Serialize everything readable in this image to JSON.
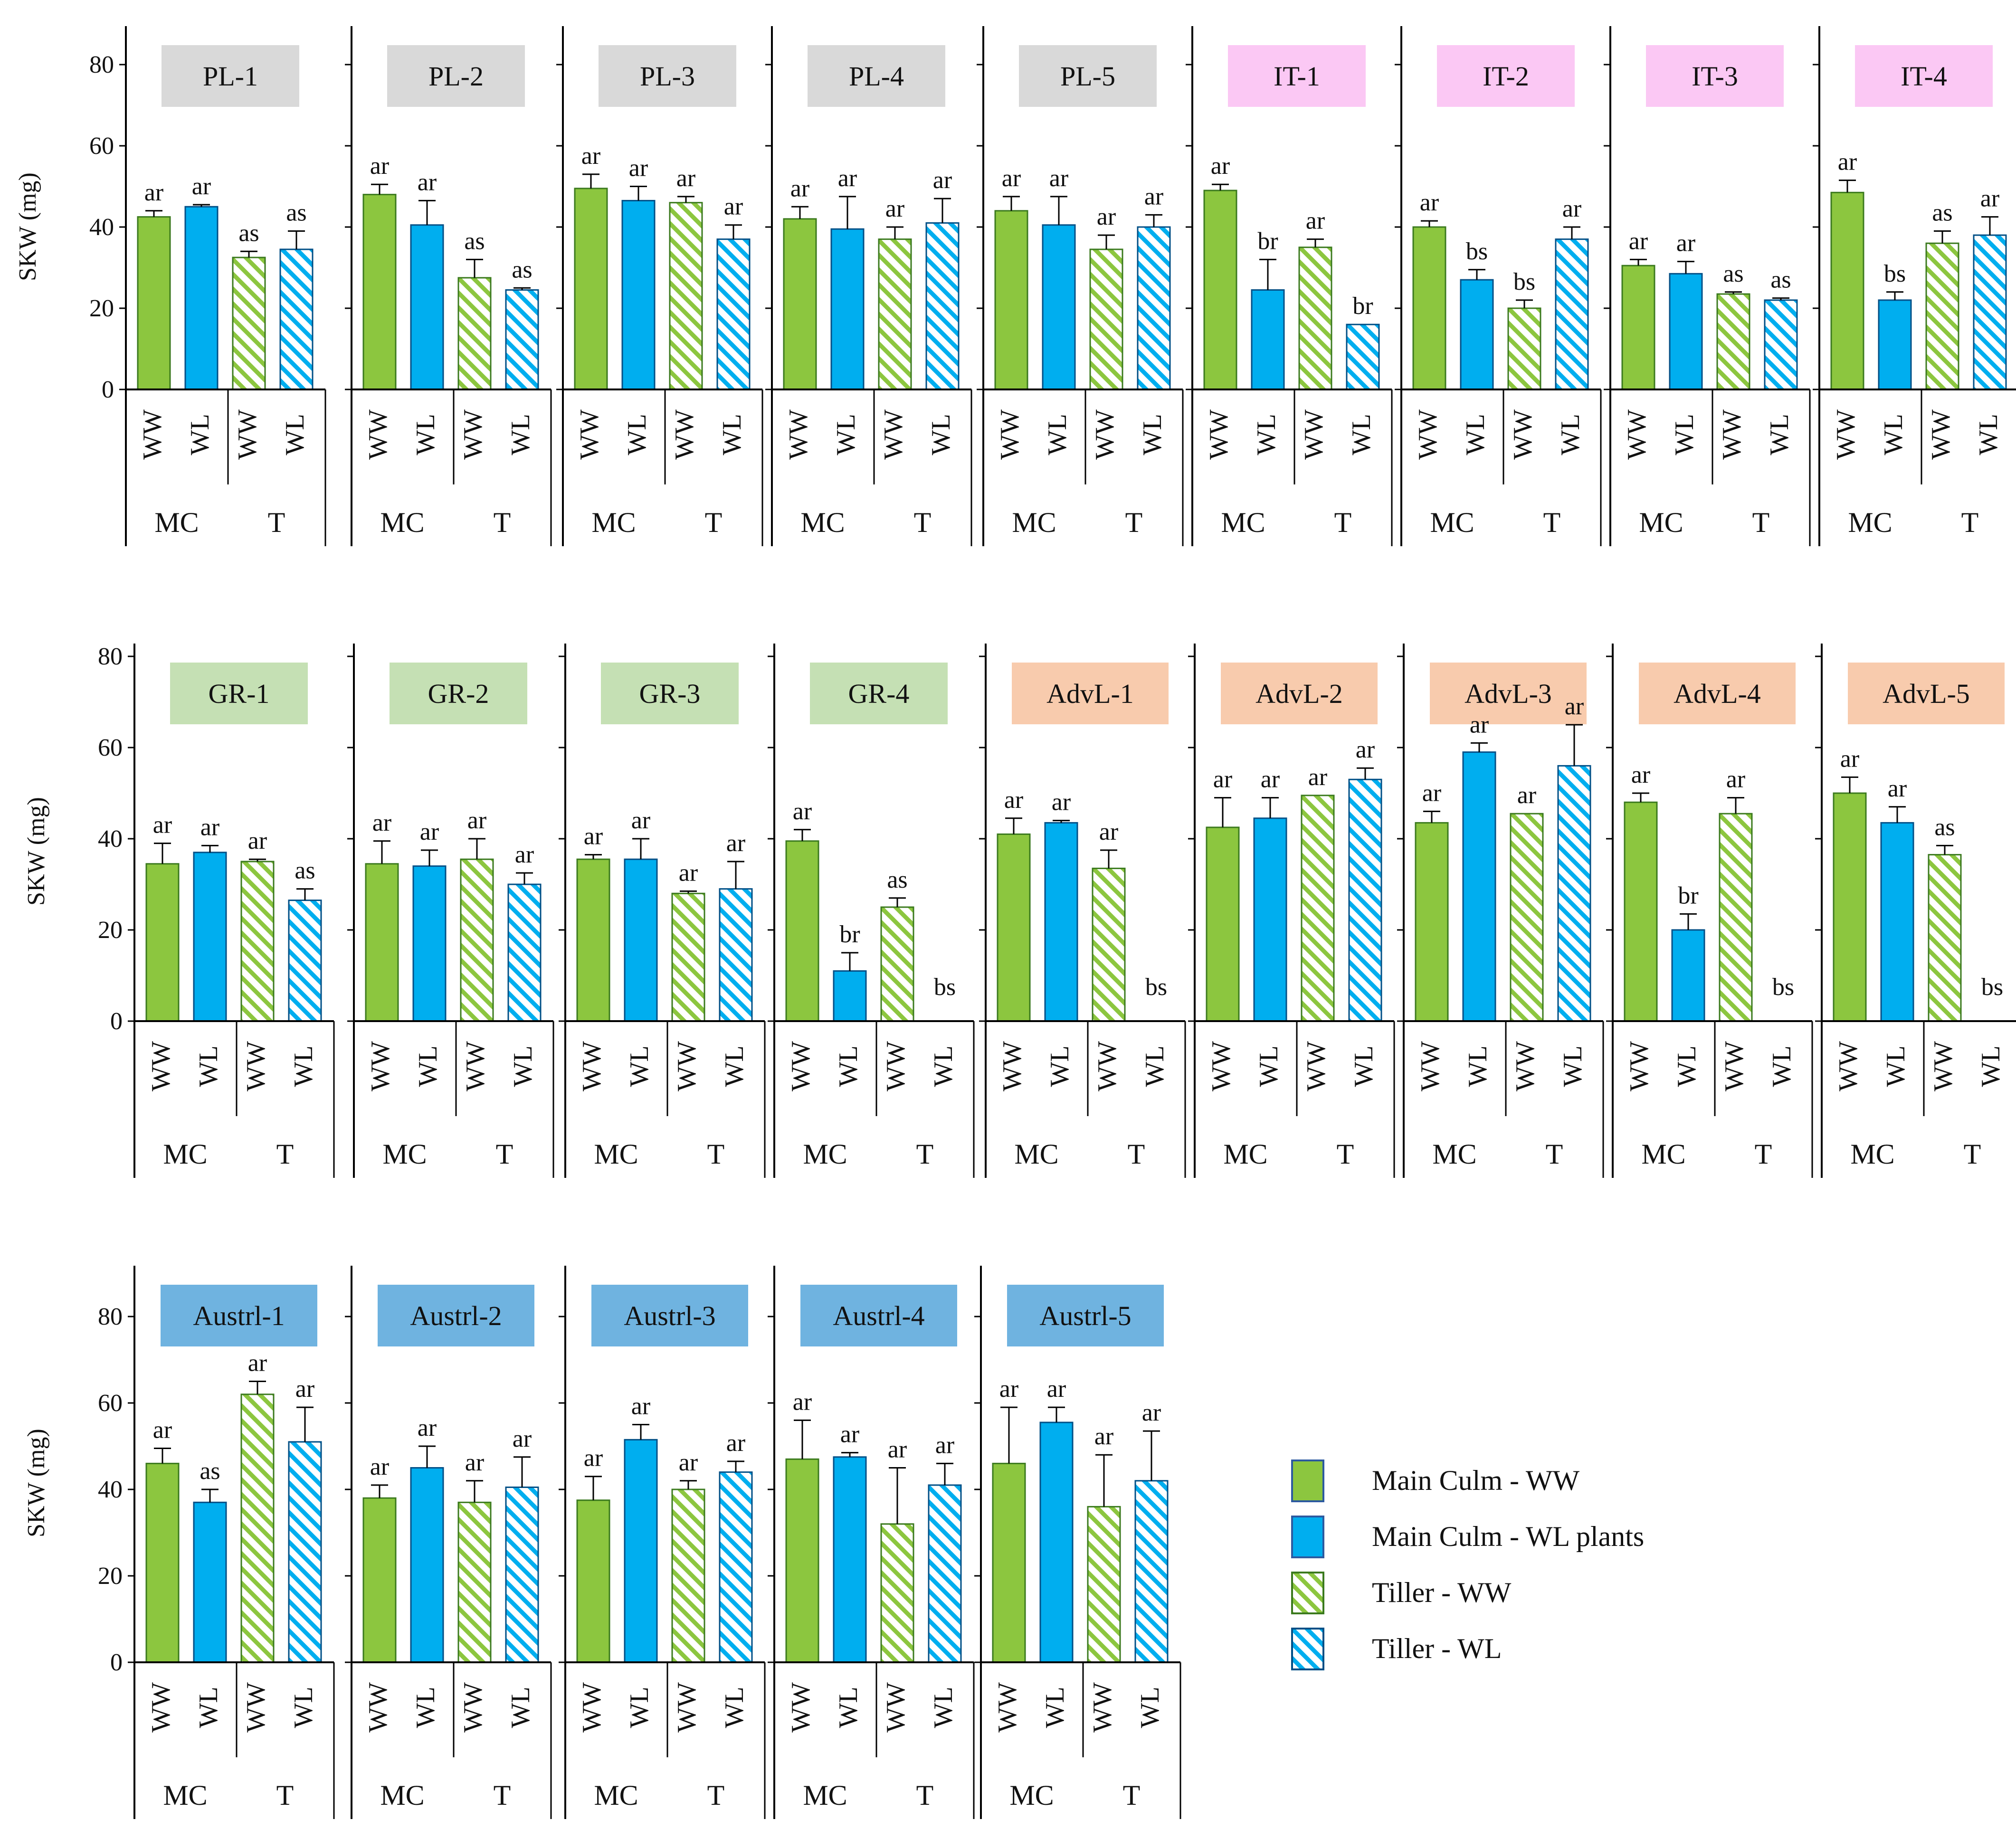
{
  "colors": {
    "ww": "#8cc63f",
    "ww_stroke": "#3b7a1e",
    "wl": "#00aeef",
    "wl_stroke": "#004f86",
    "title_PL": "#d9d9d9",
    "title_IT": "#fbc8f4",
    "title_GR": "#c5e0b4",
    "title_AdvL": "#f8cbad",
    "title_Austrl": "#6fb3e0"
  },
  "axis": {
    "ylabel": "SKW (mg)",
    "yticks": [
      0,
      20,
      40,
      60,
      80
    ],
    "ylim": [
      0,
      90
    ]
  },
  "categories": [
    "WW",
    "WL",
    "WW",
    "WL"
  ],
  "groups": [
    "MC",
    "T"
  ],
  "legend": [
    {
      "label": "Main Culm  - WW",
      "kind": "ww_solid"
    },
    {
      "label": "Main Culm  - WL plants",
      "kind": "wl_solid"
    },
    {
      "label": "Tiller - WW",
      "kind": "ww_hatch"
    },
    {
      "label": "Tiller - WL",
      "kind": "wl_hatch"
    }
  ],
  "chart_data": [
    {
      "type": "bar",
      "title": "PL-1",
      "group": "PL",
      "ylabel": "SKW (mg)",
      "categories": [
        "WW",
        "WL",
        "WW",
        "WL"
      ],
      "values": [
        42.5,
        45,
        32.5,
        34.5
      ],
      "errors": [
        1.5,
        0.5,
        1.5,
        4.5
      ],
      "labels": [
        "ar",
        "ar",
        "as",
        "as"
      ]
    },
    {
      "type": "bar",
      "title": "PL-2",
      "group": "PL",
      "ylabel": "",
      "categories": [
        "WW",
        "WL",
        "WW",
        "WL"
      ],
      "values": [
        48,
        40.5,
        27.5,
        24.5
      ],
      "errors": [
        2.5,
        6,
        4.5,
        0.5
      ],
      "labels": [
        "ar",
        "ar",
        "as",
        "as"
      ]
    },
    {
      "type": "bar",
      "title": "PL-3",
      "group": "PL",
      "ylabel": "",
      "categories": [
        "WW",
        "WL",
        "WW",
        "WL"
      ],
      "values": [
        49.5,
        46.5,
        46,
        37
      ],
      "errors": [
        3.5,
        3.5,
        1.5,
        3.5
      ],
      "labels": [
        "ar",
        "ar",
        "ar",
        "ar"
      ]
    },
    {
      "type": "bar",
      "title": "PL-4",
      "group": "PL",
      "ylabel": "",
      "categories": [
        "WW",
        "WL",
        "WW",
        "WL"
      ],
      "values": [
        42,
        39.5,
        37,
        41
      ],
      "errors": [
        3,
        8,
        3,
        6
      ],
      "labels": [
        "ar",
        "ar",
        "ar",
        "ar"
      ]
    },
    {
      "type": "bar",
      "title": "PL-5",
      "group": "PL",
      "ylabel": "",
      "categories": [
        "WW",
        "WL",
        "WW",
        "WL"
      ],
      "values": [
        44,
        40.5,
        34.5,
        40
      ],
      "errors": [
        3.5,
        7,
        3.5,
        3
      ],
      "labels": [
        "ar",
        "ar",
        "ar",
        "ar"
      ]
    },
    {
      "type": "bar",
      "title": "IT-1",
      "group": "IT",
      "ylabel": "",
      "categories": [
        "WW",
        "WL",
        "WW",
        "WL"
      ],
      "values": [
        49,
        24.5,
        35,
        16
      ],
      "errors": [
        1.5,
        7.5,
        2,
        0
      ],
      "labels": [
        "ar",
        "br",
        "ar",
        "br"
      ]
    },
    {
      "type": "bar",
      "title": "IT-2",
      "group": "IT",
      "ylabel": "",
      "categories": [
        "WW",
        "WL",
        "WW",
        "WL"
      ],
      "values": [
        40,
        27,
        20,
        37
      ],
      "errors": [
        1.5,
        2.5,
        2,
        3
      ],
      "labels": [
        "ar",
        "bs",
        "bs",
        "ar"
      ]
    },
    {
      "type": "bar",
      "title": "IT-3",
      "group": "IT",
      "ylabel": "",
      "categories": [
        "WW",
        "WL",
        "WW",
        "WL"
      ],
      "values": [
        30.5,
        28.5,
        23.5,
        22
      ],
      "errors": [
        1.5,
        3,
        0.5,
        0.5
      ],
      "labels": [
        "ar",
        "ar",
        "as",
        "as"
      ]
    },
    {
      "type": "bar",
      "title": "IT-4",
      "group": "IT",
      "ylabel": "",
      "categories": [
        "WW",
        "WL",
        "WW",
        "WL"
      ],
      "values": [
        48.5,
        22,
        36,
        38
      ],
      "errors": [
        3,
        2,
        3,
        4.5
      ],
      "labels": [
        "ar",
        "bs",
        "as",
        "ar"
      ]
    },
    {
      "type": "bar",
      "title": "GR-1",
      "group": "GR",
      "ylabel": "SKW (mg)",
      "categories": [
        "WW",
        "WL",
        "WW",
        "WL"
      ],
      "values": [
        34.5,
        37,
        35,
        26.5
      ],
      "errors": [
        4.5,
        1.5,
        0.5,
        2.5
      ],
      "labels": [
        "ar",
        "ar",
        "ar",
        "as"
      ]
    },
    {
      "type": "bar",
      "title": "GR-2",
      "group": "GR",
      "ylabel": "",
      "categories": [
        "WW",
        "WL",
        "WW",
        "WL"
      ],
      "values": [
        34.5,
        34,
        35.5,
        30
      ],
      "errors": [
        5,
        3.5,
        4.5,
        2.5
      ],
      "labels": [
        "ar",
        "ar",
        "ar",
        "ar"
      ]
    },
    {
      "type": "bar",
      "title": "GR-3",
      "group": "GR",
      "ylabel": "",
      "categories": [
        "WW",
        "WL",
        "WW",
        "WL"
      ],
      "values": [
        35.5,
        35.5,
        28,
        29
      ],
      "errors": [
        1,
        4.5,
        0.5,
        6
      ],
      "labels": [
        "ar",
        "ar",
        "ar",
        "ar"
      ]
    },
    {
      "type": "bar",
      "title": "GR-4",
      "group": "GR",
      "ylabel": "",
      "categories": [
        "WW",
        "WL",
        "WW",
        "WL"
      ],
      "values": [
        39.5,
        11,
        25,
        0
      ],
      "errors": [
        2.5,
        4,
        2,
        0
      ],
      "labels": [
        "ar",
        "br",
        "as",
        "bs"
      ]
    },
    {
      "type": "bar",
      "title": "AdvL-1",
      "group": "AdvL",
      "ylabel": "",
      "categories": [
        "WW",
        "WL",
        "WW",
        "WL"
      ],
      "values": [
        41,
        43.5,
        33.5,
        0
      ],
      "errors": [
        3.5,
        0.5,
        4,
        0
      ],
      "labels": [
        "ar",
        "ar",
        "ar",
        "bs"
      ]
    },
    {
      "type": "bar",
      "title": "AdvL-2",
      "group": "AdvL",
      "ylabel": "",
      "categories": [
        "WW",
        "WL",
        "WW",
        "WL"
      ],
      "values": [
        42.5,
        44.5,
        49.5,
        53
      ],
      "errors": [
        6.5,
        4.5,
        0,
        2.5
      ],
      "labels": [
        "ar",
        "ar",
        "ar",
        "ar"
      ]
    },
    {
      "type": "bar",
      "title": "AdvL-3",
      "group": "AdvL",
      "ylabel": "",
      "categories": [
        "WW",
        "WL",
        "WW",
        "WL"
      ],
      "values": [
        43.5,
        59,
        45.5,
        56
      ],
      "errors": [
        2.5,
        2,
        0,
        9
      ],
      "labels": [
        "ar",
        "ar",
        "ar",
        "ar"
      ]
    },
    {
      "type": "bar",
      "title": "AdvL-4",
      "group": "AdvL",
      "ylabel": "",
      "categories": [
        "WW",
        "WL",
        "WW",
        "WL"
      ],
      "values": [
        48,
        20,
        45.5,
        0
      ],
      "errors": [
        2,
        3.5,
        3.5,
        0
      ],
      "labels": [
        "ar",
        "br",
        "ar",
        "bs"
      ]
    },
    {
      "type": "bar",
      "title": "AdvL-5",
      "group": "AdvL",
      "ylabel": "",
      "categories": [
        "WW",
        "WL",
        "WW",
        "WL"
      ],
      "values": [
        50,
        43.5,
        36.5,
        0
      ],
      "errors": [
        3.5,
        3.5,
        2,
        0
      ],
      "labels": [
        "ar",
        "ar",
        "as",
        "bs"
      ]
    },
    {
      "type": "bar",
      "title": "Austrl-1",
      "group": "Austrl",
      "ylabel": "SKW (mg)",
      "categories": [
        "WW",
        "WL",
        "WW",
        "WL"
      ],
      "values": [
        46,
        37,
        62,
        51
      ],
      "errors": [
        3.5,
        3,
        3,
        8
      ],
      "labels": [
        "ar",
        "as",
        "ar",
        "ar"
      ]
    },
    {
      "type": "bar",
      "title": "Austrl-2",
      "group": "Austrl",
      "ylabel": "",
      "categories": [
        "WW",
        "WL",
        "WW",
        "WL"
      ],
      "values": [
        38,
        45,
        37,
        40.5
      ],
      "errors": [
        3,
        5,
        5,
        7
      ],
      "labels": [
        "ar",
        "ar",
        "ar",
        "ar"
      ]
    },
    {
      "type": "bar",
      "title": "Austrl-3",
      "group": "Austrl",
      "ylabel": "",
      "categories": [
        "WW",
        "WL",
        "WW",
        "WL"
      ],
      "values": [
        37.5,
        51.5,
        40,
        44
      ],
      "errors": [
        5.5,
        3.5,
        2,
        2.5
      ],
      "labels": [
        "ar",
        "ar",
        "ar",
        "ar"
      ]
    },
    {
      "type": "bar",
      "title": "Austrl-4",
      "group": "Austrl",
      "ylabel": "",
      "categories": [
        "WW",
        "WL",
        "WW",
        "WL"
      ],
      "values": [
        47,
        47.5,
        32,
        41
      ],
      "errors": [
        9,
        1,
        13,
        5
      ],
      "labels": [
        "ar",
        "ar",
        "ar",
        "ar"
      ]
    },
    {
      "type": "bar",
      "title": "Austrl-5",
      "group": "Austrl",
      "ylabel": "",
      "categories": [
        "WW",
        "WL",
        "WW",
        "WL"
      ],
      "values": [
        46,
        55.5,
        36,
        42
      ],
      "errors": [
        13,
        3.5,
        12,
        11.5
      ],
      "labels": [
        "ar",
        "ar",
        "ar",
        "ar"
      ]
    }
  ]
}
